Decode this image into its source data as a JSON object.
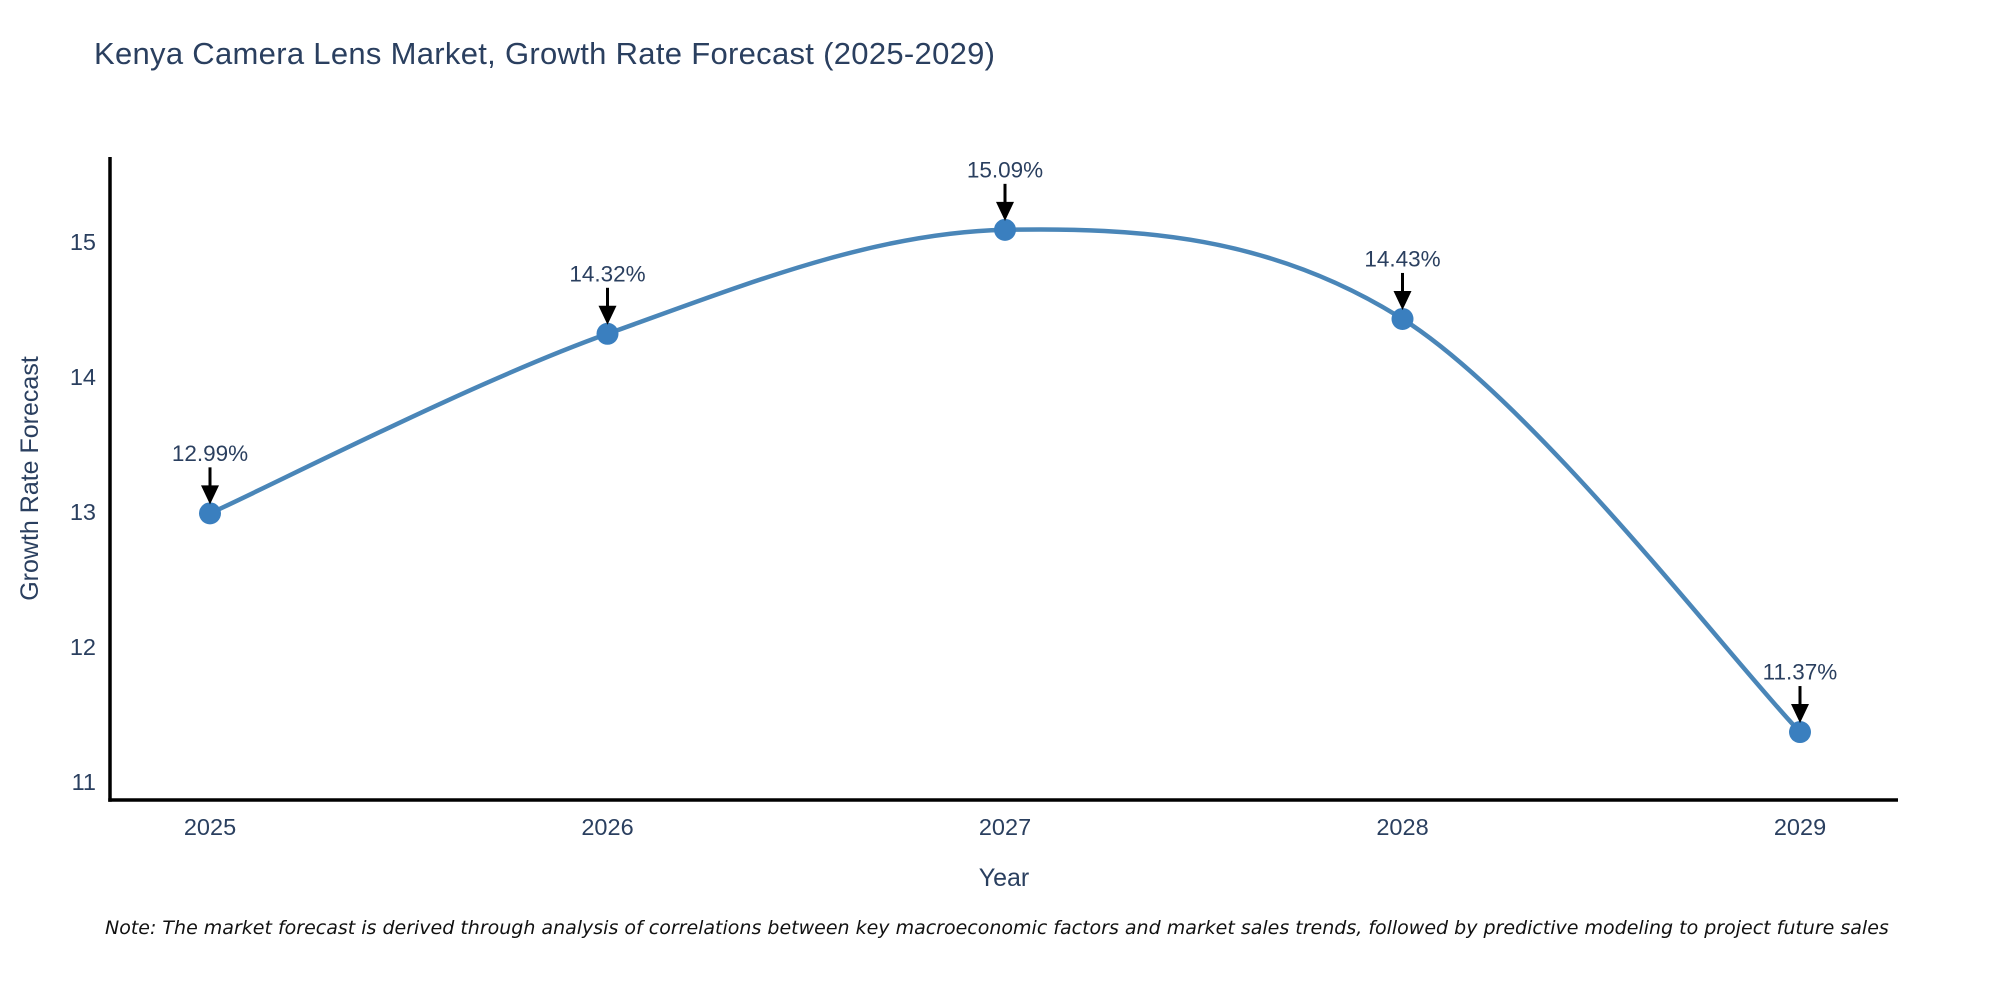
{
  "chart_data": {
    "type": "line",
    "title": "Kenya Camera Lens Market, Growth Rate Forecast (2025-2029)",
    "xlabel": "Year",
    "ylabel": "Growth Rate Forecast",
    "categories": [
      "2025",
      "2026",
      "2027",
      "2028",
      "2029"
    ],
    "series": [
      {
        "name": "Growth Rate Forecast",
        "values": [
          12.99,
          14.32,
          15.09,
          14.43,
          11.37
        ],
        "point_labels": [
          "12.99%",
          "14.32%",
          "15.09%",
          "14.43%",
          "11.37%"
        ]
      }
    ],
    "yticks": [
      11,
      12,
      13,
      14,
      15
    ],
    "ylim": [
      10.87,
      15.63
    ],
    "grid": false,
    "legend_position": "none",
    "line_shape": "spline",
    "annotation_arrows": true,
    "colors": {
      "line": "#4a86b8",
      "marker": "#3a7fbf",
      "axis": "#000000",
      "text": "#2a3f5f",
      "annotation_arrow": "#000000",
      "background": "#ffffff"
    }
  },
  "note": "Note: The market forecast is derived through analysis of correlations between key macroeconomic factors and market sales trends, followed by predictive modeling to project future sales"
}
